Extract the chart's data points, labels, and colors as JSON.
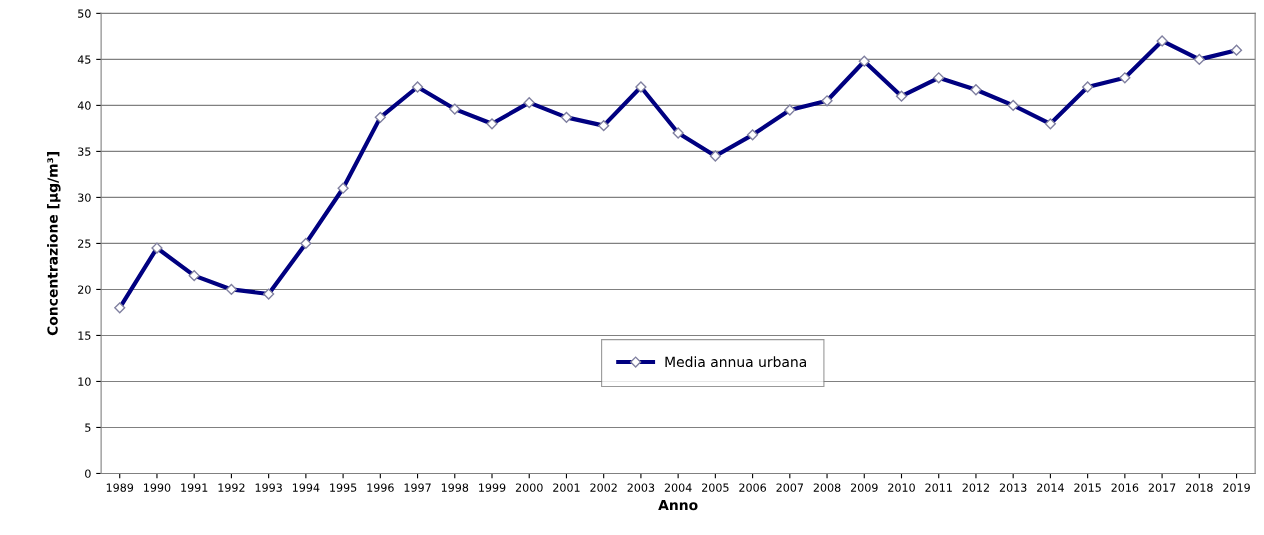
{
  "chart_data": {
    "type": "line",
    "xlabel": "Anno",
    "ylabel": "Concentrazione [µg/m³]",
    "categories": [
      "1989",
      "1990",
      "1991",
      "1992",
      "1993",
      "1994",
      "1995",
      "1996",
      "1997",
      "1998",
      "1999",
      "2000",
      "2001",
      "2002",
      "2003",
      "2004",
      "2005",
      "2006",
      "2007",
      "2008",
      "2009",
      "2010",
      "2011",
      "2012",
      "2013",
      "2014",
      "2015",
      "2016",
      "2017",
      "2018",
      "2019"
    ],
    "series": [
      {
        "name": "Media annua urbana",
        "color": "#000080",
        "values": [
          18,
          24.5,
          21.5,
          20,
          19.5,
          25,
          31,
          38.7,
          42,
          39.6,
          38,
          40.3,
          38.7,
          37.8,
          42,
          37,
          34.5,
          36.8,
          39.5,
          40.5,
          44.8,
          41,
          43,
          41.7,
          40,
          38,
          42,
          43,
          47,
          45,
          46
        ]
      }
    ],
    "ylim": [
      0,
      50
    ],
    "yticks": [
      0,
      5,
      10,
      15,
      20,
      25,
      30,
      35,
      40,
      45,
      50
    ],
    "grid": "y",
    "legend": "bottom",
    "marker": "diamond",
    "line_style": "solid"
  }
}
